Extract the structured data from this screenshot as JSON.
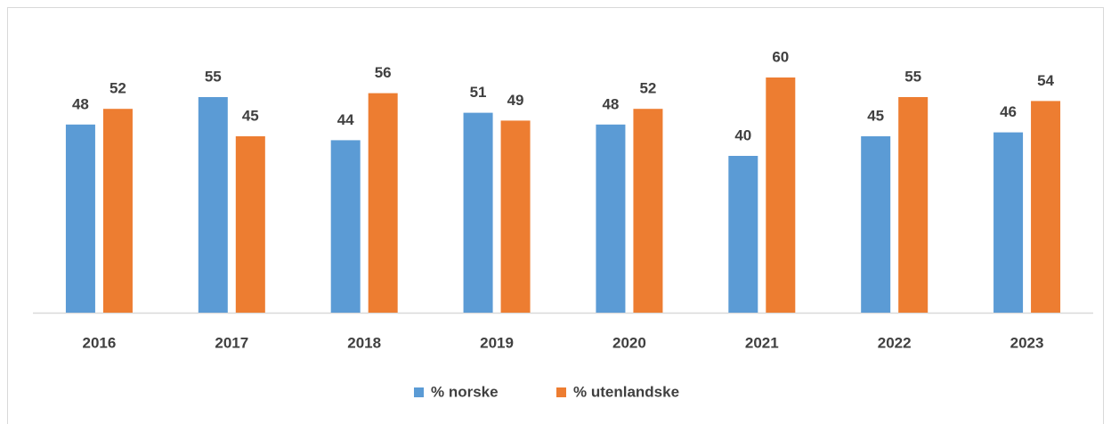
{
  "chart_data": {
    "type": "bar",
    "categories": [
      "2016",
      "2017",
      "2018",
      "2019",
      "2020",
      "2021",
      "2022",
      "2023"
    ],
    "series": [
      {
        "name": "% norske",
        "color": "#5b9bd5",
        "values": [
          48,
          55,
          44,
          51,
          48,
          40,
          45,
          46
        ]
      },
      {
        "name": "% utenlandske",
        "color": "#ed7d31",
        "values": [
          52,
          45,
          56,
          49,
          52,
          60,
          55,
          54
        ]
      }
    ],
    "ylim": [
      0,
      70
    ],
    "legend": "bottom"
  }
}
